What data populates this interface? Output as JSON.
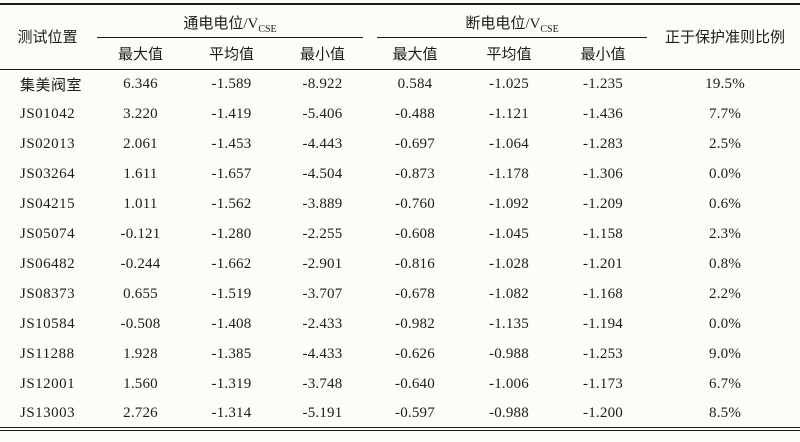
{
  "page": {
    "background_color": "#fcfcf9",
    "line_color": "#1a1a1a",
    "text_color": "#1c1c1c"
  },
  "table": {
    "header": {
      "position_label": "测试位置",
      "on_potential_group": {
        "main": "通电电位/V",
        "sub": "CSE"
      },
      "off_potential_group": {
        "main": "断电电位/V",
        "sub": "CSE"
      },
      "sub_headers": [
        "最大值",
        "平均值",
        "最小值",
        "最大值",
        "平均值",
        "最小值"
      ],
      "ratio_label": "正于保护准则比例"
    },
    "rows": [
      [
        "集美阀室",
        "6.346",
        "-1.589",
        "-8.922",
        "0.584",
        "-1.025",
        "-1.235",
        "19.5%"
      ],
      [
        "JS01042",
        "3.220",
        "-1.419",
        "-5.406",
        "-0.488",
        "-1.121",
        "-1.436",
        "7.7%"
      ],
      [
        "JS02013",
        "2.061",
        "-1.453",
        "-4.443",
        "-0.697",
        "-1.064",
        "-1.283",
        "2.5%"
      ],
      [
        "JS03264",
        "1.611",
        "-1.657",
        "-4.504",
        "-0.873",
        "-1.178",
        "-1.306",
        "0.0%"
      ],
      [
        "JS04215",
        "1.011",
        "-1.562",
        "-3.889",
        "-0.760",
        "-1.092",
        "-1.209",
        "0.6%"
      ],
      [
        "JS05074",
        "-0.121",
        "-1.280",
        "-2.255",
        "-0.608",
        "-1.045",
        "-1.158",
        "2.3%"
      ],
      [
        "JS06482",
        "-0.244",
        "-1.662",
        "-2.901",
        "-0.816",
        "-1.028",
        "-1.201",
        "0.8%"
      ],
      [
        "JS08373",
        "0.655",
        "-1.519",
        "-3.707",
        "-0.678",
        "-1.082",
        "-1.168",
        "2.2%"
      ],
      [
        "JS10584",
        "-0.508",
        "-1.408",
        "-2.433",
        "-0.982",
        "-1.135",
        "-1.194",
        "0.0%"
      ],
      [
        "JS11288",
        "1.928",
        "-1.385",
        "-4.433",
        "-0.626",
        "-0.988",
        "-1.253",
        "9.0%"
      ],
      [
        "JS12001",
        "1.560",
        "-1.319",
        "-3.748",
        "-0.640",
        "-1.006",
        "-1.173",
        "6.7%"
      ],
      [
        "JS13003",
        "2.726",
        "-1.314",
        "-5.191",
        "-0.597",
        "-0.988",
        "-1.200",
        "8.5%"
      ]
    ]
  }
}
